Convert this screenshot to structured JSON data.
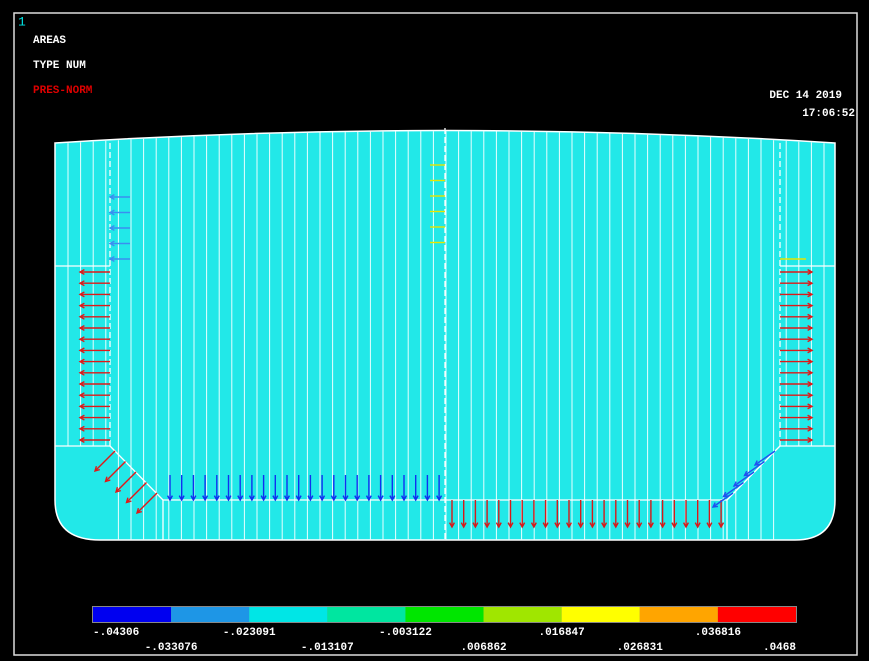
{
  "window_number": "1",
  "labels": {
    "plot": "AREAS",
    "numbering": "TYPE NUM",
    "load": "PRES-NORM"
  },
  "timestamp": {
    "date": "DEC 14 2019",
    "time": "17:06:52"
  },
  "legend": {
    "colors": [
      "#0000f0",
      "#1e96e6",
      "#00e6e6",
      "#00e6a0",
      "#00e600",
      "#a0e600",
      "#ffff00",
      "#ffa500",
      "#ff0000"
    ],
    "values": [
      "-.04306",
      "-.033076",
      "-.023091",
      "-.013107",
      "-.003122",
      ".006862",
      ".016847",
      ".026831",
      ".036816",
      ".0468"
    ]
  }
}
